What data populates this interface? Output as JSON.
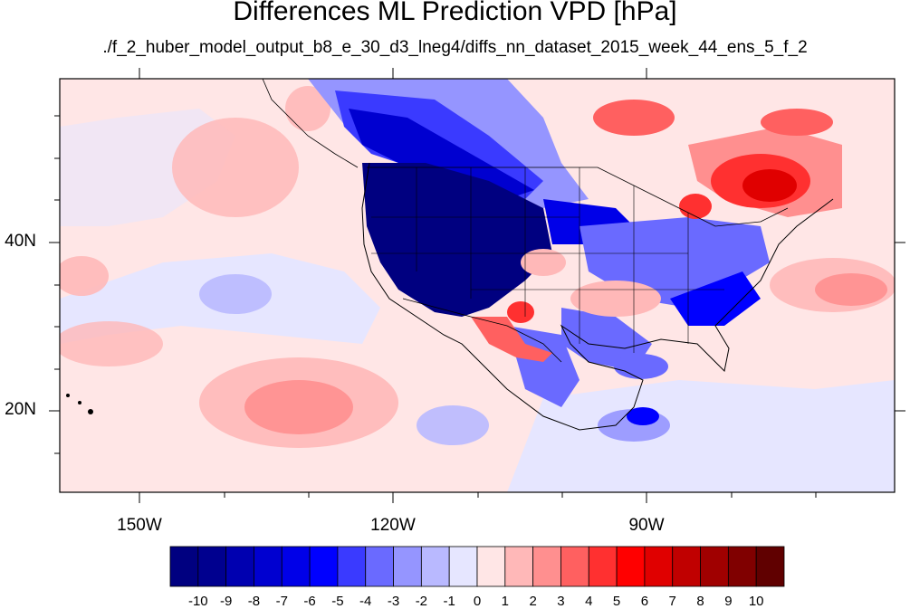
{
  "title": "Differences ML Prediction VPD [hPa]",
  "subtitle": "./f_2_huber_model_output_b8_e_30_d3_lneg4/diffs_nn_dataset_2015_week_44_ens_5_f_2",
  "lat_labels": [
    "40N",
    "20N"
  ],
  "lon_labels": [
    "150W",
    "120W",
    "90W"
  ],
  "colorbar": {
    "labels": [
      "-10",
      "-9",
      "-8",
      "-7",
      "-6",
      "-5",
      "-4",
      "-3",
      "-2",
      "-1",
      "0",
      "1",
      "2",
      "3",
      "4",
      "5",
      "6",
      "7",
      "8",
      "9",
      "10"
    ],
    "colors": [
      "#000080",
      "#00008f",
      "#0000b0",
      "#0000d0",
      "#0000e8",
      "#0000ff",
      "#3a3aff",
      "#6a6aff",
      "#9595ff",
      "#b9b9ff",
      "#e6e6ff",
      "#ffe6e6",
      "#ffb8b8",
      "#ff8f8f",
      "#ff6060",
      "#ff3030",
      "#ff0000",
      "#e00000",
      "#c00000",
      "#a00000",
      "#800000",
      "#600000"
    ]
  },
  "colors": {
    "background_near_zero_pos": "#ffe6e6",
    "background_near_zero_neg": "#e6e6ff"
  }
}
